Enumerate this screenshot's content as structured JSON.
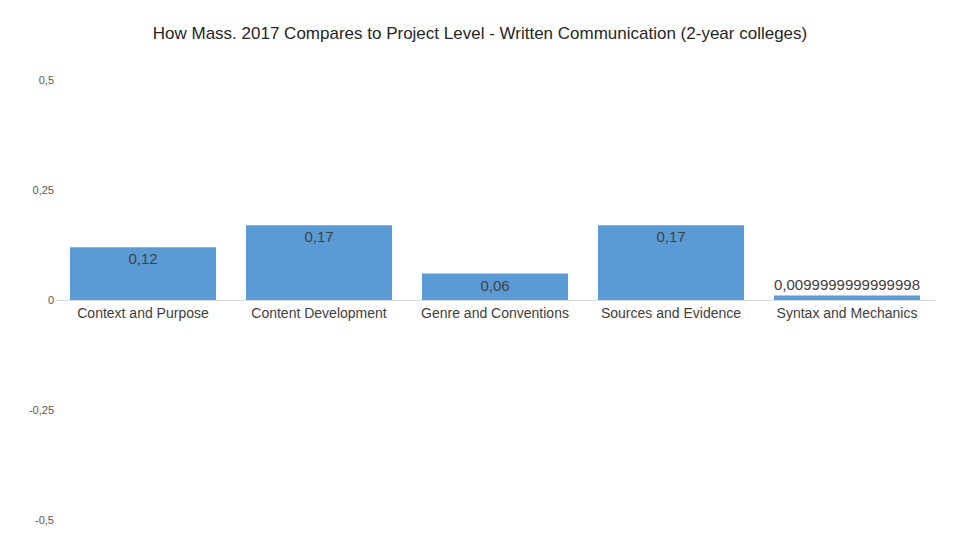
{
  "chart_data": {
    "type": "bar",
    "title": "How Mass. 2017 Compares to Project Level - Written Communication (2-year colleges)",
    "categories": [
      "Context and Purpose",
      "Content Development",
      "Genre and Conventions",
      "Sources and Evidence",
      "Syntax and Mechanics"
    ],
    "values": [
      0.12,
      0.17,
      0.06,
      0.17,
      0.0099999999999998
    ],
    "value_labels": [
      "0,12",
      "0,17",
      "0,06",
      "0,17",
      "0,0099999999999998"
    ],
    "data_labels": true,
    "color": "#5b9bd5",
    "ylim": [
      -0.5,
      0.5
    ],
    "yticks": [
      {
        "value": -0.5,
        "label": "-0,5"
      },
      {
        "value": -0.25,
        "label": "-0,25"
      },
      0,
      {
        "value": 0.25,
        "label": "0,25"
      },
      {
        "value": 0.5,
        "label": "0,5"
      }
    ],
    "grid": false
  }
}
